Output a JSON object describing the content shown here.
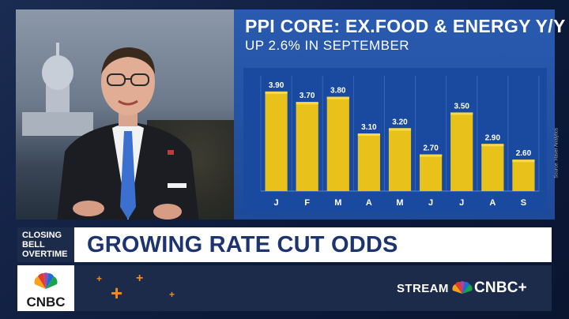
{
  "chart_data": {
    "type": "bar",
    "title": "PPI CORE: EX.FOOD & ENERGY Y/Y",
    "subtitle": "UP 2.6% IN SEPTEMBER",
    "categories": [
      "J",
      "F",
      "M",
      "A",
      "M",
      "J",
      "J",
      "A",
      "S"
    ],
    "values": [
      3.9,
      3.7,
      3.8,
      3.1,
      3.2,
      2.7,
      3.5,
      2.9,
      2.6
    ],
    "value_labels": [
      "3.90",
      "3.70",
      "3.80",
      "3.10",
      "3.20",
      "2.70",
      "3.50",
      "2.90",
      "2.60"
    ],
    "ylim": [
      2.0,
      4.2
    ],
    "grid": true,
    "bar_color": "#e8c21a",
    "source": "Source: Haver Analytics"
  },
  "lower_third": {
    "bug_text": "CLOSING BELL OVERTIME",
    "headline": "GROWING RATE CUT ODDS",
    "stream_label": "STREAM",
    "brand_plus": "CNBC+",
    "logo_text": "CNBC"
  },
  "colors": {
    "panel_blue": "#2a5bb0",
    "headline_text": "#1d3470",
    "bar_yellow": "#e8c21a",
    "accent_orange": "#f28a20"
  }
}
